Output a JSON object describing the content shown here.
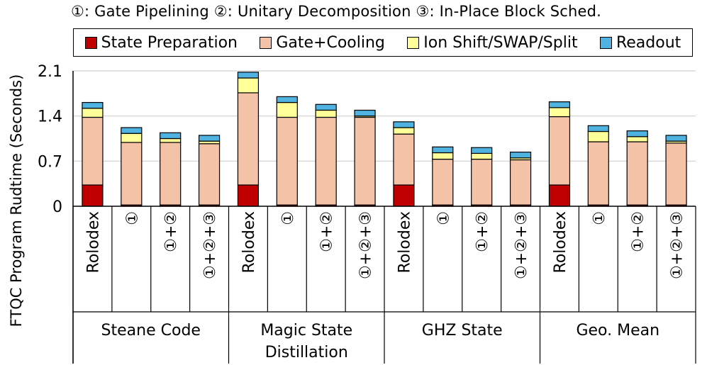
{
  "chart_data": {
    "type": "bar",
    "stacked": true,
    "title": "①: Gate Pipelining ②: Unitary Decomposition ③: In-Place Block Sched.",
    "ylabel": "FTQC Program Rudtime (Seconds)",
    "xlabel": "",
    "ylim": [
      0,
      2.1
    ],
    "yticks": [
      "0",
      "0.7",
      "1.4",
      "2.1"
    ],
    "ytick_values": [
      0,
      0.7,
      1.4,
      2.1
    ],
    "grid": true,
    "legend_position": "top",
    "groups": [
      {
        "label": "Steane Code",
        "bars": [
          "Rolodex",
          "①",
          "①+②",
          "①+②+③"
        ]
      },
      {
        "label": "Magic State Distillation",
        "bars": [
          "Rolodex",
          "①",
          "①+②",
          "①+②+③"
        ]
      },
      {
        "label": "GHZ State",
        "bars": [
          "Rolodex",
          "①",
          "①+②",
          "①+②+③"
        ]
      },
      {
        "label": "Geo. Mean",
        "bars": [
          "Rolodex",
          "①",
          "①+②",
          "①+②+③"
        ]
      }
    ],
    "group_label_lines": [
      [
        "Steane Code"
      ],
      [
        "Magic State",
        "Distillation"
      ],
      [
        "GHZ State"
      ],
      [
        "Geo. Mean"
      ]
    ],
    "series": [
      {
        "name": "State Preparation",
        "color": "#c00000",
        "values": [
          0.33,
          0.02,
          0.02,
          0.02,
          0.33,
          0.02,
          0.02,
          0.02,
          0.33,
          0.02,
          0.02,
          0.02,
          0.33,
          0.02,
          0.02,
          0.02
        ]
      },
      {
        "name": "Gate+Cooling",
        "color": "#f4c2a7",
        "values": [
          1.05,
          0.97,
          0.97,
          0.95,
          1.43,
          1.36,
          1.36,
          1.36,
          0.79,
          0.71,
          0.71,
          0.7,
          1.06,
          0.98,
          0.98,
          0.96
        ]
      },
      {
        "name": "Ion Shift/SWAP/Split",
        "color": "#ffff99",
        "values": [
          0.14,
          0.14,
          0.06,
          0.04,
          0.23,
          0.23,
          0.11,
          0.02,
          0.1,
          0.1,
          0.09,
          0.03,
          0.14,
          0.16,
          0.08,
          0.03
        ]
      },
      {
        "name": "Readout",
        "color": "#4fb2e0",
        "values": [
          0.09,
          0.09,
          0.09,
          0.09,
          0.09,
          0.09,
          0.09,
          0.09,
          0.09,
          0.09,
          0.09,
          0.09,
          0.09,
          0.09,
          0.09,
          0.09
        ]
      }
    ]
  }
}
